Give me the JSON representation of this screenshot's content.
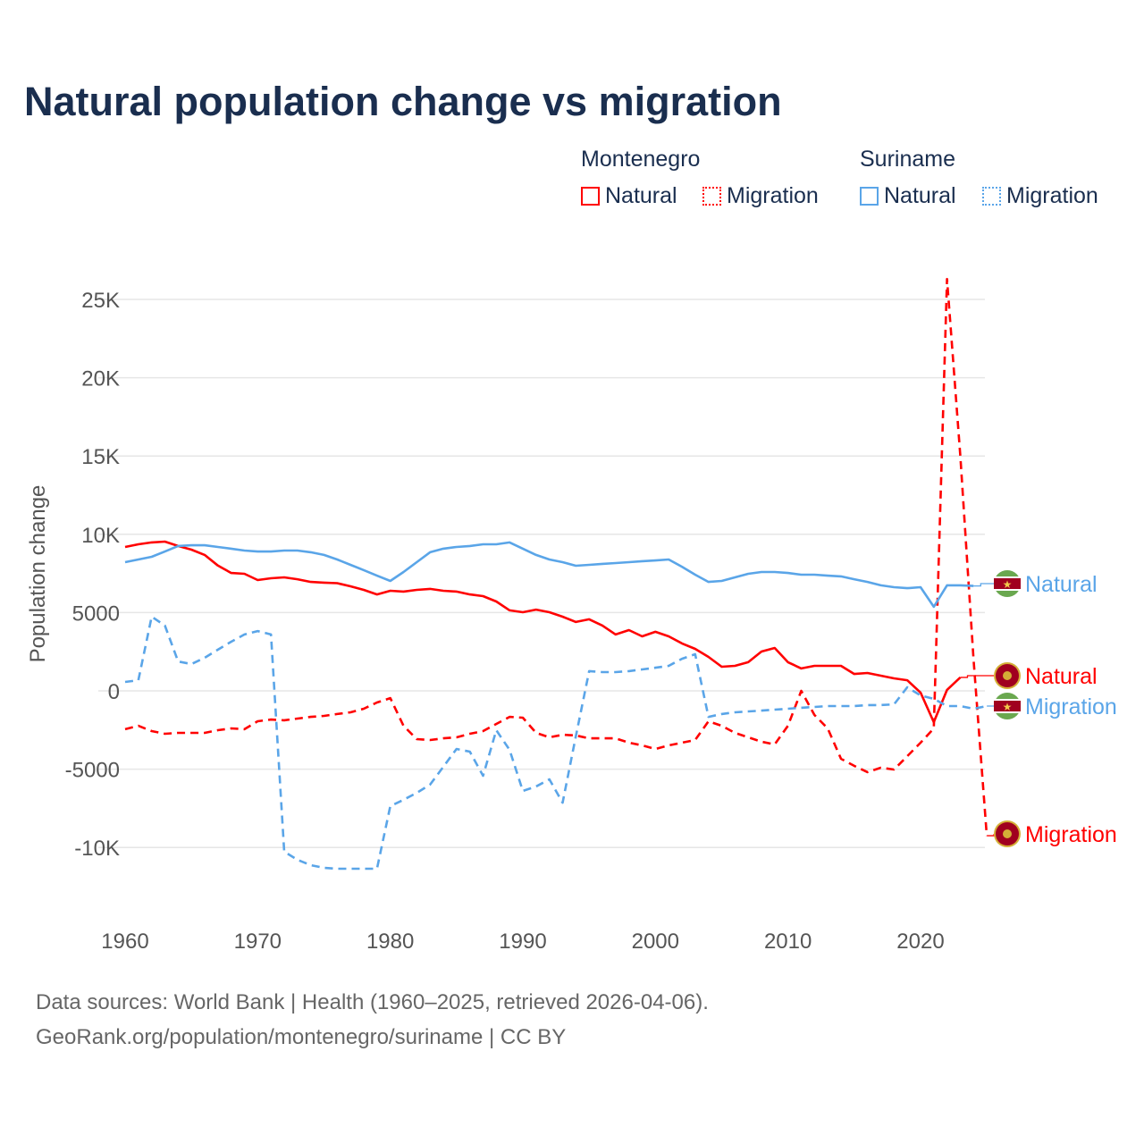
{
  "title": "Natural population change vs migration",
  "legend": {
    "groups": [
      {
        "country": "Montenegro",
        "items": [
          "Natural",
          "Migration"
        ]
      },
      {
        "country": "Suriname",
        "items": [
          "Natural",
          "Migration"
        ]
      }
    ]
  },
  "colors": {
    "montenegro": "#ff0000",
    "suriname": "#5aa5e8"
  },
  "footer": {
    "line1": "Data sources: World Bank | Health (1960–2025, retrieved 2026-04-06).",
    "line2": "GeoRank.org/population/montenegro/suriname | CC BY"
  },
  "end_labels": {
    "suriname_natural": "Natural",
    "montenegro_natural": "Natural",
    "suriname_migration": "Migration",
    "montenegro_migration": "Migration"
  },
  "chart_data": {
    "type": "line",
    "title": "Natural population change vs migration",
    "xlabel": "",
    "ylabel": "Population change",
    "xlim": [
      1960,
      2025
    ],
    "ylim": [
      -12000,
      27000
    ],
    "x_ticks": [
      "1960",
      "1970",
      "1980",
      "1990",
      "2000",
      "2010",
      "2020"
    ],
    "y_ticks": [
      {
        "v": 25000,
        "label": "25K"
      },
      {
        "v": 20000,
        "label": "20K"
      },
      {
        "v": 15000,
        "label": "15K"
      },
      {
        "v": 10000,
        "label": "10K"
      },
      {
        "v": 5000,
        "label": "5000"
      },
      {
        "v": 0,
        "label": "0"
      },
      {
        "v": -5000,
        "label": "-5000"
      },
      {
        "v": -10000,
        "label": "-10K"
      }
    ],
    "grid": true,
    "legend_position": "top-right",
    "series": [
      {
        "name": "Montenegro Natural",
        "key": "montenegro_natural",
        "country": "Montenegro",
        "dashed": false,
        "start": 1960,
        "values": [
          9190,
          9360,
          9480,
          9530,
          9250,
          9020,
          8680,
          8000,
          7530,
          7480,
          7080,
          7190,
          7250,
          7130,
          6960,
          6910,
          6880,
          6680,
          6450,
          6160,
          6390,
          6340,
          6450,
          6510,
          6390,
          6340,
          6160,
          6050,
          5710,
          5140,
          5020,
          5190,
          5020,
          4740,
          4400,
          4570,
          4170,
          3600,
          3880,
          3480,
          3770,
          3480,
          3030,
          2680,
          2170,
          1540,
          1600,
          1830,
          2510,
          2740,
          1830,
          1430,
          1600,
          1600,
          1600,
          1080,
          1140,
          970,
          800,
          680,
          -110,
          -2000,
          60,
          860
        ]
      },
      {
        "name": "Montenegro Migration",
        "key": "montenegro_migration",
        "country": "Montenegro",
        "dashed": true,
        "start": 1960,
        "values": [
          -2450,
          -2230,
          -2570,
          -2740,
          -2680,
          -2680,
          -2680,
          -2510,
          -2400,
          -2450,
          -1940,
          -1830,
          -1880,
          -1770,
          -1660,
          -1600,
          -1480,
          -1370,
          -1140,
          -740,
          -460,
          -2230,
          -3080,
          -3140,
          -3030,
          -2970,
          -2740,
          -2570,
          -2110,
          -1660,
          -1710,
          -2680,
          -2970,
          -2800,
          -2850,
          -3030,
          -3030,
          -3030,
          -3310,
          -3480,
          -3710,
          -3480,
          -3310,
          -3140,
          -1940,
          -2230,
          -2680,
          -2970,
          -3250,
          -3420,
          -2230,
          0,
          -1540,
          -2400,
          -4340,
          -4790,
          -5190,
          -4910,
          -5020,
          -4170,
          -3310,
          -2400,
          26300,
          15000,
          2000,
          -9250
        ]
      },
      {
        "name": "Suriname Natural",
        "key": "suriname_natural",
        "country": "Suriname",
        "dashed": false,
        "start": 1960,
        "values": [
          8220,
          8390,
          8560,
          8900,
          9250,
          9300,
          9300,
          9190,
          9080,
          8960,
          8900,
          8900,
          8960,
          8960,
          8850,
          8680,
          8390,
          8050,
          7710,
          7360,
          7020,
          7590,
          8220,
          8850,
          9080,
          9190,
          9250,
          9360,
          9360,
          9480,
          9080,
          8680,
          8390,
          8220,
          7990,
          8050,
          8110,
          8160,
          8220,
          8280,
          8330,
          8390,
          7930,
          7420,
          6960,
          7020,
          7250,
          7480,
          7590,
          7590,
          7530,
          7420,
          7420,
          7360,
          7310,
          7130,
          6960,
          6740,
          6620,
          6560,
          6620,
          5370,
          6740,
          6740,
          6700
        ]
      },
      {
        "name": "Suriname Migration",
        "key": "suriname_migration",
        "country": "Suriname",
        "dashed": true,
        "start": 1960,
        "values": [
          570,
          680,
          4740,
          4170,
          1880,
          1710,
          2110,
          2630,
          3140,
          3600,
          3820,
          3600,
          -10270,
          -10790,
          -11130,
          -11300,
          -11360,
          -11360,
          -11360,
          -11360,
          -7360,
          -6960,
          -6510,
          -5990,
          -4850,
          -3710,
          -3880,
          -5420,
          -2510,
          -3770,
          -6390,
          -6110,
          -5650,
          -7140,
          -2900,
          1260,
          1200,
          1200,
          1260,
          1370,
          1480,
          1600,
          2050,
          2340,
          -1660,
          -1480,
          -1370,
          -1310,
          -1260,
          -1200,
          -1140,
          -1080,
          -1030,
          -970,
          -970,
          -970,
          -910,
          -910,
          -860,
          230,
          -290,
          -510,
          -970,
          -970,
          -1140,
          -970
        ]
      }
    ]
  }
}
